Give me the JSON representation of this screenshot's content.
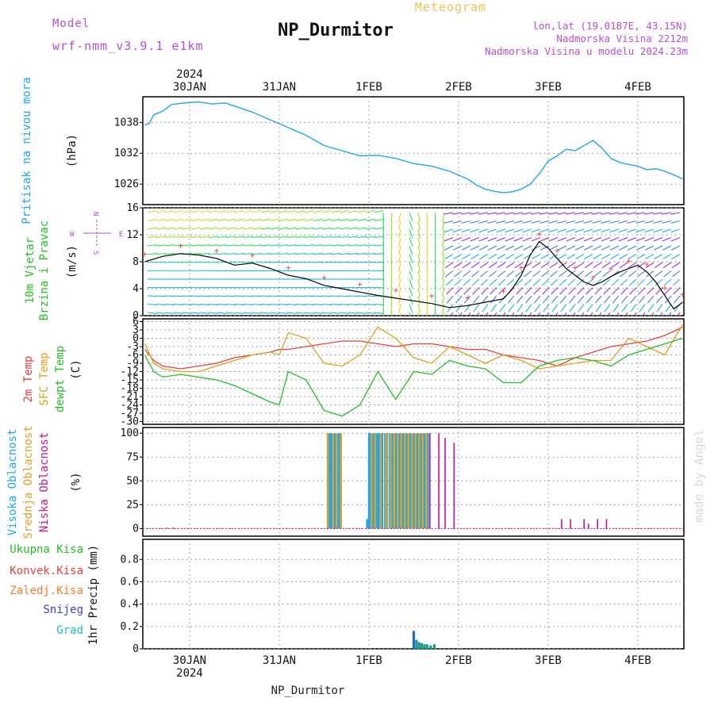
{
  "header": {
    "model_label": "Model",
    "model_name": "wrf-nmm_v3.9.1  e1km",
    "station": "NP_Durmitor",
    "chart_title": "Meteogram",
    "coords": "lon,lat (19.0187E, 43.15N)",
    "elevation": "Nadmorska Visina 2212m",
    "model_elevation": "Nadmorska Visina u modelu 2024.23m",
    "footer_station": "NP_Durmitor",
    "watermark": "made by Angel"
  },
  "colors": {
    "pressure": "#1ea7f0",
    "temp2m": "#e8403c",
    "sfc": "#e0a020",
    "dewpt": "#22c022",
    "high_cloud": "#1ea7f0",
    "mid_cloud": "#e0a020",
    "low_cloud": "#c0149c",
    "title_purple": "#b54fd6",
    "meteogram_orange": "#f0c050",
    "precip_total": "#22c022",
    "precip_conv": "#e8403c",
    "precip_frozen": "#f08030",
    "snow": "#3c3cdc",
    "hail": "#1ec0c0"
  },
  "chart_data": [
    {
      "type": "line",
      "panel": "pressure",
      "ylabel": "Pritisak na nivou mora",
      "unit": "(hPa)",
      "x_ticks": [
        "30JAN",
        "31JAN",
        "1FEB",
        "2FEB",
        "3FEB",
        "4FEB"
      ],
      "x_year": "2024",
      "yticks": [
        1026,
        1032,
        1038
      ],
      "ylim": [
        1022,
        1043
      ],
      "x": [
        0.0,
        0.05,
        0.1,
        0.2,
        0.3,
        0.45,
        0.6,
        0.75,
        0.9,
        1.0,
        1.2,
        1.4,
        1.6,
        1.8,
        2.0,
        2.2,
        2.4,
        2.6,
        2.8,
        3.0,
        3.2,
        3.4,
        3.6,
        3.7,
        3.8,
        3.9,
        4.0,
        4.1,
        4.2,
        4.3,
        4.4,
        4.5,
        4.6,
        4.7,
        4.8,
        4.9,
        5.0,
        5.1,
        5.2,
        5.3,
        5.4,
        5.5,
        5.6,
        5.7,
        5.8,
        5.9,
        6.0
      ],
      "values": [
        1037.5,
        1037.8,
        1039.5,
        1040.2,
        1041.5,
        1041.8,
        1042.0,
        1041.6,
        1041.8,
        1041.2,
        1040.0,
        1038.5,
        1037.0,
        1035.5,
        1033.5,
        1032.5,
        1031.5,
        1031.6,
        1031.0,
        1030.0,
        1029.5,
        1028.5,
        1027.0,
        1025.8,
        1025.0,
        1024.6,
        1024.3,
        1024.5,
        1025.0,
        1026.0,
        1028.0,
        1030.5,
        1031.5,
        1032.8,
        1032.5,
        1033.5,
        1034.5,
        1033.0,
        1031.0,
        1030.2,
        1029.8,
        1029.5,
        1028.8,
        1029.0,
        1028.5,
        1027.8,
        1027.0
      ]
    },
    {
      "type": "line",
      "panel": "wind",
      "ylabel": "10m Vjetar Brzina i Pravac",
      "unit": "(m/s)",
      "compass": {
        "n": "N",
        "s": "S",
        "e": "E",
        "w": "W"
      },
      "yticks": [
        0,
        4,
        8,
        12,
        16
      ],
      "ylim": [
        0,
        16
      ],
      "x": [
        0.0,
        0.2,
        0.4,
        0.6,
        0.8,
        1.0,
        1.2,
        1.4,
        1.6,
        1.8,
        2.0,
        2.2,
        2.4,
        2.6,
        2.8,
        3.0,
        3.2,
        3.4,
        3.6,
        3.8,
        4.0,
        4.1,
        4.2,
        4.3,
        4.4,
        4.5,
        4.6,
        4.7,
        4.8,
        4.9,
        5.0,
        5.1,
        5.2,
        5.3,
        5.4,
        5.5,
        5.6,
        5.7,
        5.8,
        5.9,
        6.0
      ],
      "values": [
        8.0,
        8.8,
        9.2,
        9.0,
        8.5,
        7.5,
        7.8,
        7.0,
        6.0,
        5.5,
        4.5,
        4.0,
        3.5,
        3.0,
        2.6,
        2.2,
        1.8,
        1.2,
        1.5,
        2.0,
        2.5,
        4.0,
        6.0,
        9.0,
        11.0,
        10.0,
        8.5,
        7.0,
        6.0,
        5.0,
        4.5,
        5.0,
        5.8,
        6.5,
        7.0,
        7.5,
        6.5,
        5.0,
        3.0,
        1.0,
        2.0
      ]
    },
    {
      "type": "line",
      "panel": "temperature",
      "unit": "(C)",
      "labels": [
        "2m Temp",
        "SFC Temp",
        "dewpt Temp"
      ],
      "yticks": [
        6,
        3,
        0,
        -3,
        -6,
        -9,
        -12,
        -15,
        -18,
        -21,
        -24,
        -27,
        -30
      ],
      "ylim": [
        -31,
        7
      ],
      "x": [
        0.0,
        0.1,
        0.2,
        0.4,
        0.6,
        0.8,
        1.0,
        1.2,
        1.4,
        1.5,
        1.6,
        1.8,
        2.0,
        2.2,
        2.4,
        2.6,
        2.8,
        3.0,
        3.2,
        3.4,
        3.6,
        3.8,
        4.0,
        4.2,
        4.4,
        4.6,
        4.8,
        5.0,
        5.2,
        5.4,
        5.6,
        5.8,
        6.0
      ],
      "series": [
        {
          "name": "2m Temp",
          "values": [
            -4,
            -8,
            -10,
            -11,
            -10,
            -9,
            -7,
            -6,
            -5,
            -4,
            -4,
            -3,
            -2,
            -1,
            -1,
            -2,
            -3,
            -2,
            -2,
            -3,
            -4,
            -4,
            -6,
            -7,
            -8,
            -10,
            -7,
            -5,
            -3,
            -2,
            -1,
            1,
            4
          ]
        },
        {
          "name": "SFC Temp",
          "values": [
            -2,
            -9,
            -11,
            -12,
            -12,
            -10,
            -8,
            -6,
            -5,
            -6,
            2,
            0,
            -9,
            -10,
            -6,
            4,
            0,
            -7,
            -9,
            -3,
            -6,
            -9,
            -6,
            -8,
            -11,
            -10,
            -9,
            -8,
            -8,
            0,
            -3,
            -6,
            5
          ]
        },
        {
          "name": "dewpt Temp",
          "values": [
            -6,
            -12,
            -14,
            -13,
            -14,
            -15,
            -17,
            -20,
            -23,
            -24,
            -12,
            -15,
            -26,
            -28,
            -24,
            -12,
            -22,
            -12,
            -13,
            -8,
            -10,
            -11,
            -16,
            -16,
            -10,
            -8,
            -7,
            -8,
            -10,
            -6,
            -4,
            -2,
            0
          ]
        }
      ]
    },
    {
      "type": "bar",
      "panel": "cloud",
      "unit": "(%)",
      "labels": [
        "Visoka Oblacnost",
        "Srednja Oblacnost",
        "Niska Oblacnost"
      ],
      "yticks": [
        0,
        25,
        50,
        75,
        100
      ],
      "ylim": [
        -8,
        106
      ],
      "series": [
        {
          "name": "Visoka Oblacnost",
          "x": [
            2.05,
            2.07,
            2.09,
            2.12,
            2.16,
            2.18,
            2.48,
            2.5,
            2.52,
            2.55,
            2.58,
            2.6,
            2.62,
            2.65,
            2.68,
            2.7,
            2.73,
            2.76,
            2.8,
            2.84,
            2.88,
            2.92,
            2.96,
            3.0,
            3.04,
            3.08,
            3.12,
            3.16
          ],
          "values": [
            100,
            100,
            100,
            100,
            100,
            100,
            10,
            100,
            100,
            100,
            100,
            100,
            100,
            100,
            100,
            100,
            100,
            100,
            100,
            100,
            100,
            100,
            100,
            100,
            100,
            100,
            100,
            100
          ]
        },
        {
          "name": "Srednja Oblacnost",
          "x": [
            2.04,
            2.1,
            2.14,
            2.19,
            2.53,
            2.57,
            2.63,
            2.69,
            2.74,
            2.78,
            2.82,
            2.86,
            2.9,
            2.94,
            2.98,
            3.02,
            3.06,
            3.1,
            3.14
          ],
          "values": [
            100,
            100,
            100,
            100,
            100,
            100,
            100,
            100,
            100,
            100,
            100,
            100,
            100,
            100,
            100,
            100,
            100,
            100,
            100
          ]
        },
        {
          "name": "Niska Oblacnost",
          "x": [
            0.25,
            0.32,
            3.18,
            3.28,
            3.35,
            3.45,
            4.65,
            4.75,
            4.9,
            4.95,
            5.05,
            5.15
          ],
          "values": [
            1,
            1,
            100,
            100,
            95,
            90,
            10,
            10,
            10,
            5,
            10,
            10
          ]
        }
      ]
    },
    {
      "type": "bar",
      "panel": "precip",
      "ylabel": "1hr Precip",
      "unit": "(mm)",
      "labels": [
        "Ukupna Kisa",
        "Konvek.Kisa",
        "Zaledj.Kisa",
        "Snijeg",
        "Grad"
      ],
      "yticks": [
        0,
        0.2,
        0.4,
        0.6,
        0.8
      ],
      "ylim": [
        0,
        0.98
      ],
      "x": [
        3.0,
        3.03,
        3.06,
        3.09,
        3.12,
        3.15,
        3.19,
        3.23,
        3.52
      ],
      "values": [
        0.16,
        0.08,
        0.06,
        0.05,
        0.04,
        0.04,
        0.03,
        0.04,
        0.005
      ]
    }
  ]
}
